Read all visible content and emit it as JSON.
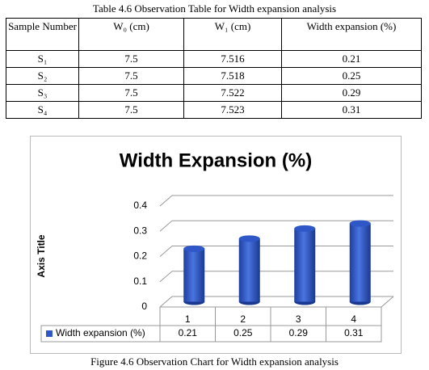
{
  "table": {
    "caption": "Table 4.6 Observation Table for Width expansion analysis",
    "header": [
      "Sample Number",
      "W₀ (cm)",
      "W₁ (cm)",
      "Width expansion (%)"
    ],
    "rows": [
      [
        "S₁",
        "7.5",
        "7.516",
        "0.21"
      ],
      [
        "S₂",
        "7.5",
        "7.518",
        "0.25"
      ],
      [
        "S₃",
        "7.5",
        "7.522",
        "0.29"
      ],
      [
        "S₄",
        "7.5",
        "7.523",
        "0.31"
      ]
    ]
  },
  "chart_data": {
    "type": "bar",
    "title": "Width Expansion (%)",
    "y_axis_label": "Axis Title",
    "categories": [
      "1",
      "2",
      "3",
      "4"
    ],
    "series": [
      {
        "name": "Width expansion (%)",
        "color": "#2f57c8",
        "values": [
          0.21,
          0.25,
          0.29,
          0.31
        ]
      }
    ],
    "ylim": [
      0,
      0.4
    ],
    "yticks": [
      0,
      0.1,
      0.2,
      0.3,
      0.4
    ],
    "grid": true
  },
  "figure_caption": "Figure 4.6 Observation Chart for Width expansion analysis"
}
